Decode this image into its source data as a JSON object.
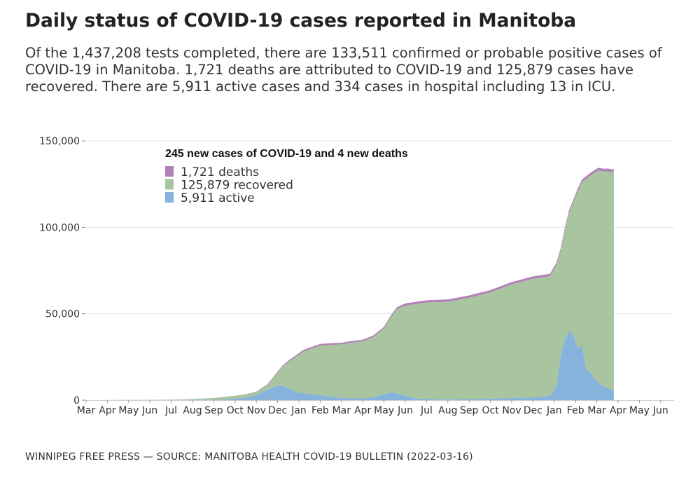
{
  "title": "Daily status of COVID-19 cases reported in Manitoba",
  "subtitle": "Of the 1,437,208 tests completed, there are 133,511 confirmed or probable positive cases of COVID-19 in Manitoba. 1,721 deaths are attributed to COVID-19 and 125,879 cases have recovered. There are 5,911 active cases and 334 cases in hospital including 13 in ICU.",
  "source": "WINNIPEG FREE PRESS — SOURCE: MANITOBA HEALTH COVID-19 BULLETIN (2022-03-16)",
  "colors": {
    "deaths": "#b182b5",
    "recovered": "#a8c59f",
    "active": "#86b2dc",
    "grid": "#e6e6e6",
    "axis": "#cfcfcf"
  },
  "chart_data": {
    "type": "area",
    "stacked": true,
    "legend_title": "245 new cases of COVID-19 and 4 new deaths",
    "legend_placement": "top-left",
    "xlabel": "",
    "ylabel": "",
    "ylim": [
      0,
      150000
    ],
    "y_ticks": [
      0,
      50000,
      100000,
      150000
    ],
    "y_tick_labels": [
      "0",
      "50,000",
      "100,000",
      "150,000"
    ],
    "x_ticks": [
      "Mar",
      "Apr",
      "May",
      "Jun",
      "Jul",
      "Aug",
      "Sep",
      "Oct",
      "Nov",
      "Dec",
      "Jan",
      "Feb",
      "Mar",
      "Apr",
      "May",
      "Jun",
      "Jul",
      "Aug",
      "Sep",
      "Oct",
      "Nov",
      "Dec",
      "Jan",
      "Feb",
      "Mar",
      "Apr",
      "May",
      "Jun"
    ],
    "x_unit": "months since Mar 2020",
    "xlim": [
      0,
      27.5
    ],
    "series": [
      {
        "name": "active",
        "label": "5,911 active",
        "x": [
          0,
          4,
          6,
          7,
          7.5,
          8,
          8.5,
          8.9,
          9.2,
          9.5,
          9.8,
          10.2,
          10.6,
          11,
          11.5,
          12,
          12.5,
          13,
          13.5,
          14,
          14.3,
          14.6,
          15,
          15.5,
          16,
          17,
          18,
          19,
          20,
          21,
          21.8,
          22.1,
          22.3,
          22.5,
          22.7,
          22.9,
          23.1,
          23.3,
          23.5,
          23.7,
          23.9,
          24.1,
          24.3,
          24.5,
          24.8
        ],
        "values": [
          0,
          30,
          150,
          800,
          1500,
          3000,
          6000,
          8000,
          8500,
          7000,
          5000,
          4000,
          3500,
          3000,
          2000,
          1200,
          1000,
          1000,
          1500,
          3500,
          4500,
          4000,
          2500,
          900,
          600,
          500,
          600,
          800,
          1200,
          1500,
          2500,
          8000,
          25000,
          35000,
          40000,
          38000,
          30000,
          32000,
          18000,
          16000,
          12000,
          10000,
          8000,
          7000,
          5911
        ]
      },
      {
        "name": "recovered",
        "label": "125,879 recovered",
        "x": [
          0,
          4,
          6,
          7,
          7.5,
          8,
          8.5,
          8.9,
          9.2,
          9.5,
          9.8,
          10.2,
          10.6,
          11,
          11.5,
          12,
          12.5,
          13,
          13.5,
          14,
          14.3,
          14.6,
          15,
          15.5,
          16,
          17,
          18,
          19,
          20,
          21,
          21.8,
          22.1,
          22.3,
          22.5,
          22.7,
          22.9,
          23.1,
          23.3,
          23.5,
          23.7,
          23.9,
          24.1,
          24.3,
          24.5,
          24.8
        ],
        "values": [
          0,
          250,
          1000,
          1700,
          1900,
          1800,
          2500,
          6500,
          10500,
          15000,
          19500,
          24000,
          26300,
          28500,
          30000,
          31000,
          32300,
          33000,
          35000,
          38000,
          43000,
          48500,
          52200,
          54700,
          55900,
          56400,
          58600,
          61500,
          65700,
          68700,
          69200,
          70100,
          61300,
          63200,
          68700,
          76600,
          90800,
          94000,
          110000,
          113900,
          119500,
          122800,
          124200,
          125300,
          125879
        ]
      },
      {
        "name": "deaths",
        "label": "1,721 deaths",
        "x": [
          0,
          4,
          6,
          7,
          7.5,
          8,
          8.5,
          8.9,
          9.2,
          9.5,
          9.8,
          10.2,
          10.6,
          11,
          11.5,
          12,
          12.5,
          13,
          13.5,
          14,
          14.3,
          14.6,
          15,
          15.5,
          16,
          17,
          18,
          19,
          20,
          21,
          21.8,
          22.1,
          22.3,
          22.5,
          22.7,
          22.9,
          23.1,
          23.3,
          23.5,
          23.7,
          23.9,
          24.1,
          24.3,
          24.5,
          24.8
        ],
        "values": [
          0,
          20,
          50,
          100,
          100,
          200,
          500,
          500,
          700,
          800,
          900,
          1000,
          1000,
          1000,
          1000,
          1000,
          1000,
          1000,
          1000,
          1000,
          1100,
          1200,
          1300,
          1300,
          1300,
          1400,
          1400,
          1400,
          1400,
          1400,
          1400,
          1400,
          1400,
          1500,
          1500,
          1500,
          1600,
          1600,
          1600,
          1600,
          1700,
          1700,
          1700,
          1700,
          1721
        ]
      }
    ],
    "legend": [
      {
        "series": "deaths",
        "label": "1,721 deaths"
      },
      {
        "series": "recovered",
        "label": "125,879 recovered"
      },
      {
        "series": "active",
        "label": "5,911 active"
      }
    ]
  }
}
